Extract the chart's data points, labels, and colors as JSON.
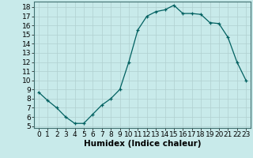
{
  "x": [
    0,
    1,
    2,
    3,
    4,
    5,
    6,
    7,
    8,
    9,
    10,
    11,
    12,
    13,
    14,
    15,
    16,
    17,
    18,
    19,
    20,
    21,
    22,
    23
  ],
  "y": [
    8.7,
    7.8,
    7.0,
    6.0,
    5.3,
    5.3,
    6.3,
    7.3,
    8.0,
    9.0,
    12.0,
    15.5,
    17.0,
    17.5,
    17.7,
    18.2,
    17.3,
    17.3,
    17.2,
    16.3,
    16.2,
    14.7,
    12.0,
    10.0
  ],
  "line_color": "#006060",
  "marker": "+",
  "bg_color": "#c8eaea",
  "grid_color": "#b0d0d0",
  "xlabel": "Humidex (Indice chaleur)",
  "xlim": [
    -0.5,
    23.5
  ],
  "ylim": [
    4.8,
    18.6
  ],
  "yticks": [
    5,
    6,
    7,
    8,
    9,
    10,
    11,
    12,
    13,
    14,
    15,
    16,
    17,
    18
  ],
  "xticks": [
    0,
    1,
    2,
    3,
    4,
    5,
    6,
    7,
    8,
    9,
    10,
    11,
    12,
    13,
    14,
    15,
    16,
    17,
    18,
    19,
    20,
    21,
    22,
    23
  ],
  "tick_fontsize": 6.5,
  "xlabel_fontsize": 7.5
}
